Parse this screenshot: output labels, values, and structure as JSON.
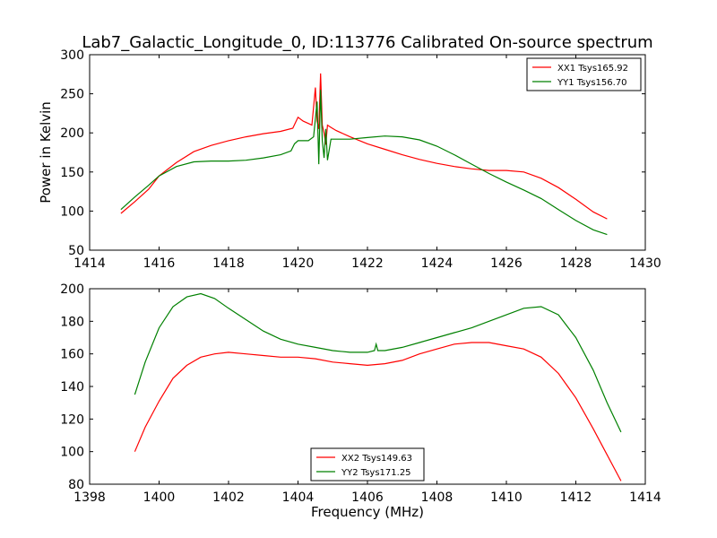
{
  "figure_title": "Lab7_Galactic_Longitude_0, ID:113776 Calibrated On-source spectrum",
  "colors": {
    "xx": "#ff0000",
    "yy": "#008000",
    "axis": "#000000",
    "background": "#ffffff"
  },
  "chart_data": [
    {
      "type": "line",
      "title": "Lab7_Galactic_Longitude_0, ID:113776 Calibrated On-source spectrum",
      "xlabel": "",
      "ylabel": "Power in Kelvin",
      "xlim": [
        1414,
        1430
      ],
      "ylim": [
        50,
        300
      ],
      "x_ticks": [
        "1414",
        "1416",
        "1418",
        "1420",
        "1422",
        "1424",
        "1426",
        "1428",
        "1430"
      ],
      "y_ticks": [
        "50",
        "100",
        "150",
        "200",
        "250",
        "300"
      ],
      "grid": false,
      "legend_position": "top-right",
      "series": [
        {
          "name": "XX1 Tsys165.92",
          "color": "#ff0000",
          "x": [
            1414.9,
            1415.3,
            1415.7,
            1416.0,
            1416.5,
            1417.0,
            1417.5,
            1418.0,
            1418.5,
            1419.0,
            1419.5,
            1419.85,
            1420.0,
            1420.15,
            1420.3,
            1420.4,
            1420.5,
            1420.55,
            1420.6,
            1420.65,
            1420.7,
            1420.75,
            1420.8,
            1420.85,
            1420.95,
            1421.1,
            1421.5,
            1422.0,
            1422.5,
            1423.0,
            1423.5,
            1424.0,
            1424.5,
            1425.0,
            1425.5,
            1426.0,
            1426.5,
            1427.0,
            1427.5,
            1428.0,
            1428.5,
            1428.9
          ],
          "y": [
            97,
            112,
            128,
            145,
            162,
            176,
            184,
            190,
            195,
            199,
            202,
            206,
            220,
            215,
            212,
            210,
            258,
            215,
            205,
            276,
            210,
            200,
            185,
            210,
            207,
            203,
            195,
            186,
            179,
            172,
            166,
            161,
            157,
            154,
            152,
            152,
            150,
            142,
            130,
            115,
            99,
            90
          ]
        },
        {
          "name": "YY1 Tsys156.70",
          "color": "#008000",
          "x": [
            1414.9,
            1415.3,
            1415.7,
            1416.0,
            1416.5,
            1417.0,
            1417.5,
            1418.0,
            1418.5,
            1419.0,
            1419.5,
            1419.8,
            1419.9,
            1420.0,
            1420.3,
            1420.45,
            1420.55,
            1420.6,
            1420.65,
            1420.7,
            1420.75,
            1420.8,
            1420.85,
            1420.95,
            1421.2,
            1421.5,
            1422.0,
            1422.5,
            1423.0,
            1423.5,
            1424.0,
            1424.5,
            1425.0,
            1425.5,
            1426.0,
            1426.5,
            1427.0,
            1427.5,
            1428.0,
            1428.5,
            1428.9
          ],
          "y": [
            102,
            118,
            133,
            145,
            157,
            163,
            164,
            164,
            165,
            168,
            172,
            177,
            186,
            190,
            190,
            195,
            240,
            160,
            255,
            190,
            168,
            205,
            165,
            192,
            192,
            192,
            194,
            196,
            195,
            191,
            183,
            172,
            160,
            148,
            137,
            127,
            116,
            102,
            88,
            76,
            70
          ]
        }
      ]
    },
    {
      "type": "line",
      "title": "",
      "xlabel": "Frequency (MHz)",
      "ylabel": "",
      "xlim": [
        1398,
        1414
      ],
      "ylim": [
        80,
        200
      ],
      "x_ticks": [
        "1398",
        "1400",
        "1402",
        "1404",
        "1406",
        "1408",
        "1410",
        "1412",
        "1414"
      ],
      "y_ticks": [
        "80",
        "100",
        "120",
        "140",
        "160",
        "180",
        "200"
      ],
      "grid": false,
      "legend_position": "bottom-center",
      "series": [
        {
          "name": "XX2 Tsys149.63",
          "color": "#ff0000",
          "x": [
            1399.3,
            1399.6,
            1400.0,
            1400.4,
            1400.8,
            1401.2,
            1401.6,
            1402.0,
            1402.5,
            1403.0,
            1403.5,
            1404.0,
            1404.5,
            1405.0,
            1405.5,
            1406.0,
            1406.5,
            1407.0,
            1407.5,
            1408.0,
            1408.5,
            1409.0,
            1409.5,
            1410.0,
            1410.5,
            1411.0,
            1411.5,
            1412.0,
            1412.5,
            1412.9,
            1413.3
          ],
          "y": [
            100,
            115,
            131,
            145,
            153,
            158,
            160,
            161,
            160,
            159,
            158,
            158,
            157,
            155,
            154,
            153,
            154,
            156,
            160,
            163,
            166,
            167,
            167,
            165,
            163,
            158,
            148,
            133,
            114,
            98,
            82
          ]
        },
        {
          "name": "YY2 Tsys171.25",
          "color": "#008000",
          "x": [
            1399.3,
            1399.6,
            1400.0,
            1400.4,
            1400.8,
            1401.2,
            1401.6,
            1402.0,
            1402.5,
            1403.0,
            1403.5,
            1404.0,
            1404.5,
            1405.0,
            1405.5,
            1406.0,
            1406.2,
            1406.25,
            1406.3,
            1406.5,
            1407.0,
            1407.5,
            1408.0,
            1408.5,
            1409.0,
            1409.5,
            1410.0,
            1410.5,
            1411.0,
            1411.5,
            1412.0,
            1412.5,
            1412.9,
            1413.3
          ],
          "y": [
            135,
            155,
            176,
            189,
            195,
            197,
            194,
            188,
            181,
            174,
            169,
            166,
            164,
            162,
            161,
            161,
            162,
            166,
            162,
            162,
            164,
            167,
            170,
            173,
            176,
            180,
            184,
            188,
            189,
            184,
            170,
            150,
            130,
            112
          ]
        }
      ]
    }
  ]
}
